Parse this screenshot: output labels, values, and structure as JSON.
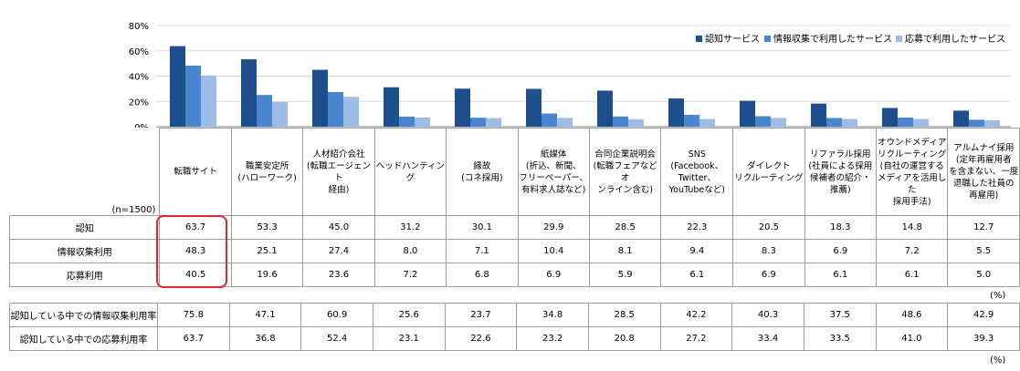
{
  "chart_data": {
    "type": "bar",
    "n_label": "(n=1500)",
    "unit": "(%)",
    "ylim": [
      0,
      80
    ],
    "yticks": [
      "0%",
      "20%",
      "40%",
      "60%",
      "80%"
    ],
    "ytick_values": [
      0,
      20,
      40,
      60,
      80
    ],
    "grid": true,
    "legend_position": "top-right",
    "categories": [
      [
        "転職サイト"
      ],
      [
        "職業安定所",
        "(ハローワーク)"
      ],
      [
        "人材紹介会社",
        "(転職エージェント",
        "経由)"
      ],
      [
        "ヘッドハンティング"
      ],
      [
        "縁故",
        "(コネ採用)"
      ],
      [
        "紙媒体",
        "(折込、新聞、",
        "フリーペーパー、",
        "有料求人誌など)"
      ],
      [
        "合同企業説明会",
        "(転職フェアなどオ",
        "ンライン含む)"
      ],
      [
        "SNS",
        "(Facebook、",
        "Twitter、",
        "YouTubeなど)"
      ],
      [
        "ダイレクト",
        "リクルーティング"
      ],
      [
        "リファラル採用",
        "(社員による採用",
        "候補者の紹介・",
        "推薦)"
      ],
      [
        "オウンドメディア",
        "リクルーティング",
        "(自社の運営する",
        "メディアを活用した",
        "採用手法)"
      ],
      [
        "アルムナイ採用",
        "(定年再雇用者",
        "を含まない、一度",
        "退職した社員の",
        "再雇用)"
      ]
    ],
    "series": [
      {
        "name": "認知サービス",
        "row_label": "認知",
        "color": "#1f4e8c",
        "values": [
          "63.7",
          "53.3",
          "45.0",
          "31.2",
          "30.1",
          "29.9",
          "28.5",
          "22.3",
          "20.5",
          "18.3",
          "14.8",
          "12.7"
        ]
      },
      {
        "name": "情報収集で利用したサービス",
        "row_label": "情報収集利用",
        "color": "#4a86d0",
        "values": [
          "48.3",
          "25.1",
          "27.4",
          "8.0",
          "7.1",
          "10.4",
          "8.1",
          "9.4",
          "8.3",
          "6.9",
          "7.2",
          "5.5"
        ]
      },
      {
        "name": "応募で利用したサービス",
        "row_label": "応募利用",
        "color": "#9dbde6",
        "values": [
          "40.5",
          "19.6",
          "23.6",
          "7.2",
          "6.8",
          "6.9",
          "5.9",
          "6.1",
          "6.9",
          "6.1",
          "6.1",
          "5.0"
        ]
      }
    ],
    "rates": [
      {
        "label": "認知している中での情報収集利用率",
        "values": [
          "75.8",
          "47.1",
          "60.9",
          "25.6",
          "23.7",
          "34.8",
          "28.5",
          "42.2",
          "40.3",
          "37.5",
          "48.6",
          "42.9"
        ]
      },
      {
        "label": "認知している中での応募利用率",
        "values": [
          "63.7",
          "36.8",
          "52.4",
          "23.1",
          "22.6",
          "23.2",
          "20.8",
          "27.2",
          "33.4",
          "33.5",
          "41.0",
          "39.3"
        ]
      }
    ]
  }
}
